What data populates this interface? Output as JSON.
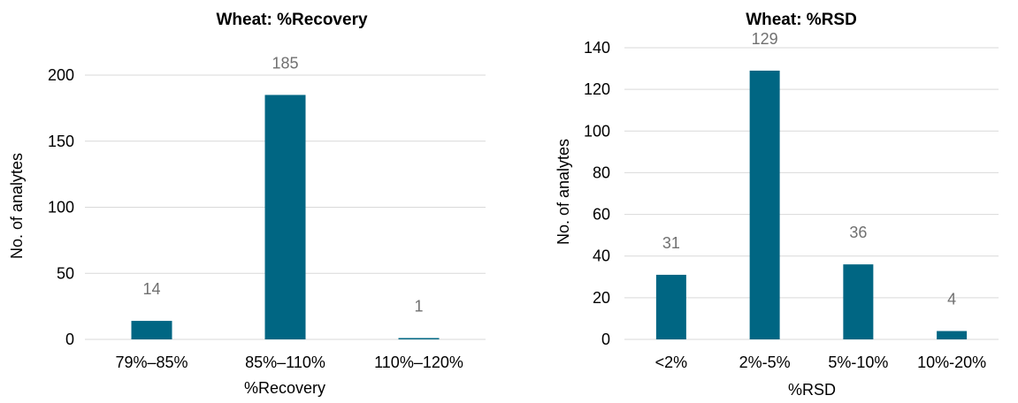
{
  "chart_data": [
    {
      "type": "bar",
      "title": "Wheat: %Recovery",
      "xlabel": "%Recovery",
      "ylabel": "No. of analytes",
      "categories": [
        "79%–85%",
        "85%–110%",
        "110%–120%"
      ],
      "values": [
        14,
        185,
        1
      ],
      "data_labels": [
        "14",
        "185",
        "1"
      ],
      "ylim": [
        0,
        200
      ],
      "yticks": [
        0,
        50,
        100,
        150,
        200
      ],
      "grid": true,
      "legend": "none",
      "color": "#006683"
    },
    {
      "type": "bar",
      "title": "Wheat: %RSD",
      "xlabel": "%RSD",
      "ylabel": "No. of analytes",
      "categories": [
        "<2%",
        "2%-5%",
        "5%-10%",
        "10%-20%"
      ],
      "values": [
        31,
        129,
        36,
        4
      ],
      "data_labels": [
        "31",
        "129",
        "36",
        "4"
      ],
      "ylim": [
        0,
        140
      ],
      "yticks": [
        0,
        20,
        40,
        60,
        80,
        100,
        120,
        140
      ],
      "grid": true,
      "legend": "none",
      "color": "#006683"
    }
  ]
}
